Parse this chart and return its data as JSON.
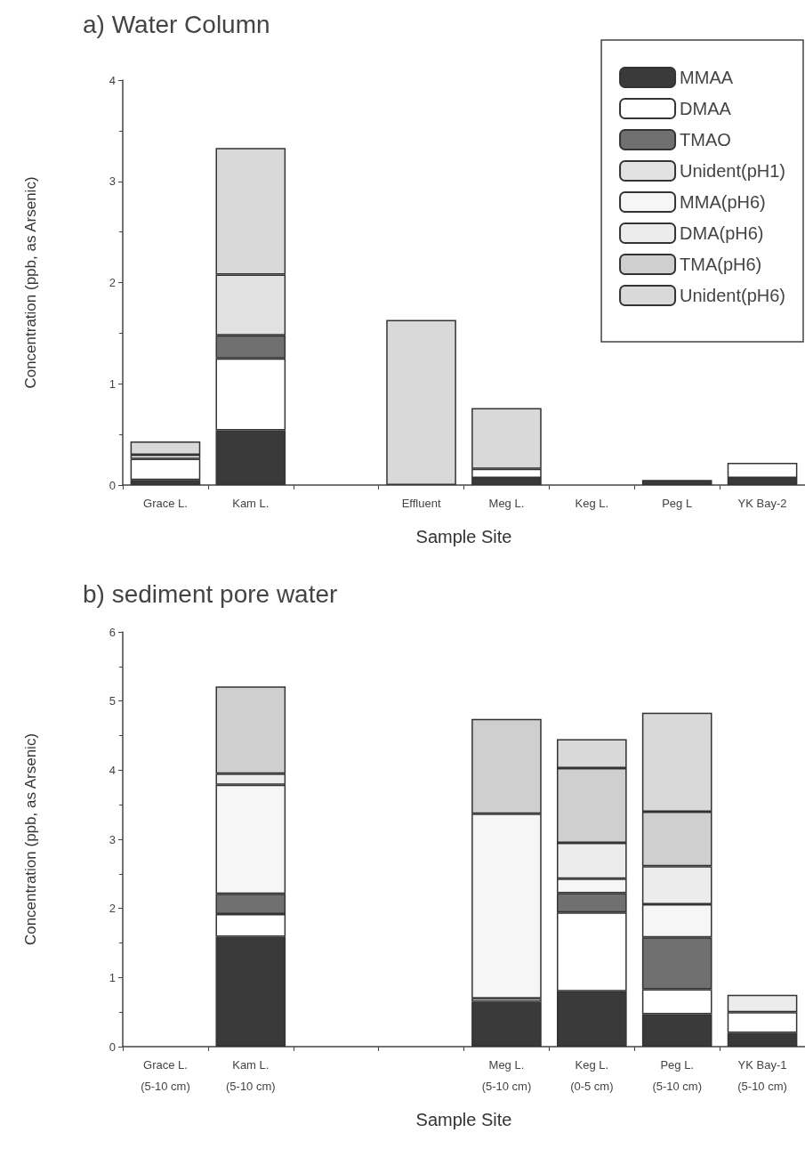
{
  "chart_data": [
    {
      "type": "bar",
      "title": "a) Water Column",
      "xlabel": "Sample Site",
      "ylabel": "Concentration (ppb, as Arsenic)",
      "stacked": true,
      "legend": "top right",
      "grid": false,
      "categories": [
        "Grace L.",
        "Kam L.",
        null,
        "Effluent",
        "Meg L.",
        "Keg L.",
        "Peg L",
        "YK Bay-2"
      ],
      "ylim": [
        0,
        4
      ],
      "yticks": [
        0,
        1,
        2,
        3,
        4
      ],
      "series": [
        {
          "name": "MMAA",
          "color": "#3a3a3a",
          "values": [
            0.05,
            0.54,
            null,
            null,
            0.07,
            null,
            0.05,
            0.07
          ]
        },
        {
          "name": "DMAA",
          "color": "#ffffff",
          "values": [
            0.21,
            0.71,
            null,
            null,
            0.09,
            null,
            null,
            0.15
          ]
        },
        {
          "name": "TMAO",
          "color": "#707070",
          "values": [
            null,
            0.23,
            null,
            null,
            null,
            null,
            null,
            null
          ]
        },
        {
          "name": "Unident(pH1)",
          "color": "#e2e2e2",
          "values": [
            null,
            0.6,
            null,
            null,
            null,
            null,
            null,
            null
          ]
        },
        {
          "name": "MMA(pH6)",
          "color": "#f6f6f6",
          "values": [
            0.04,
            null,
            null,
            null,
            null,
            null,
            null,
            null
          ]
        },
        {
          "name": "DMA(pH6)",
          "color": "#ececec",
          "values": [
            null,
            null,
            null,
            null,
            null,
            null,
            null,
            null
          ]
        },
        {
          "name": "TMA(pH6)",
          "color": "#cfcfcf",
          "values": [
            null,
            null,
            null,
            null,
            null,
            null,
            null,
            null
          ]
        },
        {
          "name": "Unident(pH6)",
          "color": "#d9d9d9",
          "values": [
            0.13,
            1.25,
            null,
            1.63,
            0.6,
            null,
            null,
            null
          ]
        }
      ]
    },
    {
      "type": "bar",
      "title": "b) sediment pore water",
      "xlabel": "Sample Site",
      "ylabel": "Concentration (ppb, as Arsenic)",
      "stacked": true,
      "grid": false,
      "categories": [
        "Grace L.\n(5-10 cm)",
        "Kam L.\n(5-10 cm)",
        null,
        null,
        "Meg L.\n(5-10 cm)",
        "Keg L.\n(0-5 cm)",
        "Peg L.\n(5-10 cm)",
        "YK Bay-1\n(5-10 cm)"
      ],
      "ylim": [
        0,
        6
      ],
      "yticks": [
        0,
        1,
        2,
        3,
        4,
        5,
        6
      ],
      "series": [
        {
          "color": "#3a3a3a",
          "values": [
            null,
            1.59,
            null,
            null,
            0.65,
            0.8,
            0.47,
            0.2
          ]
        },
        {
          "color": "#ffffff",
          "values": [
            null,
            0.33,
            null,
            null,
            0.05,
            1.14,
            0.36,
            0.3
          ]
        },
        {
          "color": "#707070",
          "values": [
            null,
            0.29,
            null,
            null,
            null,
            0.28,
            0.75,
            null
          ]
        },
        {
          "color": "#e2e2e2",
          "values": [
            null,
            null,
            null,
            null,
            null,
            null,
            null,
            null
          ]
        },
        {
          "color": "#f6f6f6",
          "values": [
            null,
            1.58,
            null,
            null,
            2.67,
            0.21,
            0.48,
            null
          ]
        },
        {
          "color": "#ececec",
          "values": [
            null,
            0.16,
            null,
            null,
            null,
            0.52,
            0.55,
            0.25
          ]
        },
        {
          "color": "#cfcfcf",
          "values": [
            null,
            1.26,
            null,
            null,
            1.37,
            1.08,
            0.79,
            null
          ]
        },
        {
          "color": "#d9d9d9",
          "values": [
            null,
            null,
            null,
            null,
            null,
            0.42,
            1.43,
            null
          ]
        }
      ]
    }
  ]
}
